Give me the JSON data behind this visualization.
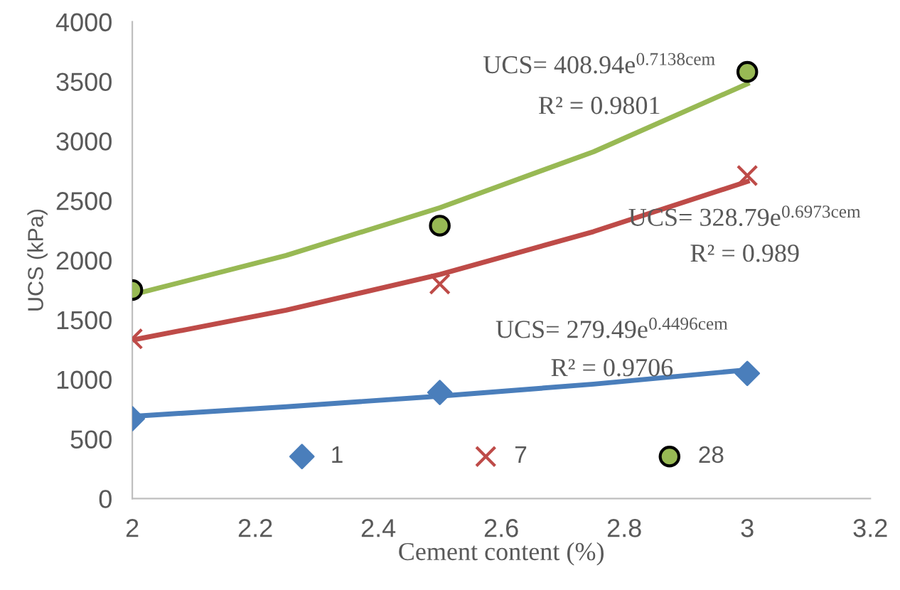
{
  "chart_data": {
    "type": "scatter",
    "xlabel": "Cement content (%)",
    "ylabel": "UCS (kPa)",
    "xlim": [
      2,
      3.2
    ],
    "xticks": [
      2,
      2.2,
      2.4,
      2.6,
      2.8,
      3,
      3.2
    ],
    "ylim": [
      0,
      4000
    ],
    "yticks": [
      0,
      500,
      1000,
      1500,
      2000,
      2500,
      3000,
      3500,
      4000
    ],
    "grid": false,
    "legend": "bottom",
    "series": [
      {
        "type": "line",
        "color": "#4a7ebb",
        "x": [
          2,
          2.25,
          2.5,
          2.75,
          3
        ],
        "values": [
          690,
          770,
          860,
          960,
          1080
        ]
      },
      {
        "type": "line",
        "color": "#be4b48",
        "x": [
          2,
          2.25,
          2.5,
          2.75,
          3
        ],
        "values": [
          1330,
          1580,
          1880,
          2240,
          2660
        ]
      },
      {
        "type": "line",
        "color": "#98b954",
        "x": [
          2,
          2.25,
          2.5,
          2.75,
          3
        ],
        "values": [
          1710,
          2040,
          2440,
          2910,
          3480
        ]
      },
      {
        "name": "1",
        "marker": "diamond",
        "color": "#4a7ebb",
        "x": [
          2,
          2.5,
          3
        ],
        "values": [
          670,
          890,
          1050
        ]
      },
      {
        "name": "7",
        "marker": "cross",
        "color": "#be4b48",
        "x": [
          2,
          2.5,
          3
        ],
        "values": [
          1340,
          1800,
          2710
        ]
      },
      {
        "name": "28",
        "marker": "circle",
        "color": "#98b954",
        "x": [
          2,
          2.5,
          3
        ],
        "values": [
          1750,
          2290,
          3580
        ]
      }
    ],
    "annotations": [
      "UCS= 408.94e$^{0.7138cem}$",
      "R² = 0.9801",
      "UCS= 328.79e$^{0.6973cem}$",
      "R² = 0.989",
      "UCS= 279.49e$^{0.4496cem}$",
      "R² = 0.9706"
    ]
  }
}
